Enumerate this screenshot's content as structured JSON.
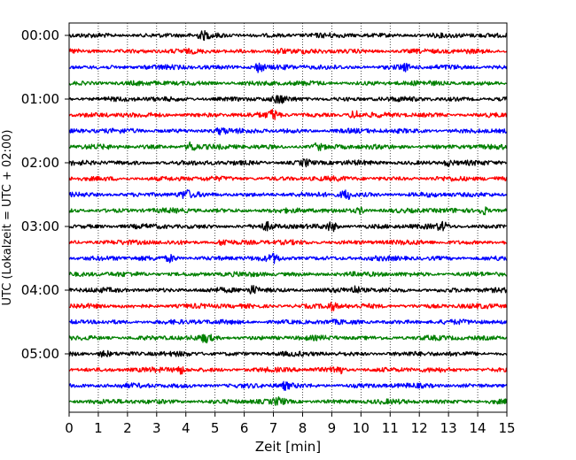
{
  "chart_data": {
    "type": "line",
    "subtype": "helicorder",
    "title": "",
    "xlabel": "Zeit  [min]",
    "ylabel": "UTC (Lokalzeit = UTC + 02:00)",
    "xlim": [
      0,
      15
    ],
    "x_ticks": [
      "0",
      "1",
      "2",
      "3",
      "4",
      "5",
      "6",
      "7",
      "8",
      "9",
      "10",
      "11",
      "12",
      "13",
      "14",
      "15"
    ],
    "x_gridlines": "dotted vertical at each minute",
    "y_tick_labels": [
      "00:00",
      "01:00",
      "02:00",
      "03:00",
      "04:00",
      "05:00"
    ],
    "y_tick_rows": [
      0,
      4,
      8,
      12,
      16,
      20
    ],
    "trace_count": 24,
    "trace_interval_min": 15,
    "color_cycle": [
      "#000000",
      "#ff0000",
      "#0000ff",
      "#008000"
    ],
    "notes": "Seismogram traces; each row is 15 minutes of continuous waveform, amplitudes are noise-like with local bursts.",
    "bursts": [
      {
        "row": 0,
        "x": 4.6,
        "amp": 1.3
      },
      {
        "row": 1,
        "x": 7.2,
        "amp": 1.2
      },
      {
        "row": 2,
        "x": 6.5,
        "amp": 2.2
      },
      {
        "row": 2,
        "x": 11.5,
        "amp": 1.3
      },
      {
        "row": 4,
        "x": 7.2,
        "amp": 1.4
      },
      {
        "row": 5,
        "x": 7.0,
        "amp": 2.0
      },
      {
        "row": 5,
        "x": 9.8,
        "amp": 1.8
      },
      {
        "row": 6,
        "x": 5.2,
        "amp": 1.2
      },
      {
        "row": 7,
        "x": 4.2,
        "amp": 2.2
      },
      {
        "row": 7,
        "x": 8.5,
        "amp": 1.3
      },
      {
        "row": 8,
        "x": 8.1,
        "amp": 1.2
      },
      {
        "row": 8,
        "x": 13.0,
        "amp": 1.2
      },
      {
        "row": 10,
        "x": 9.5,
        "amp": 2.2
      },
      {
        "row": 10,
        "x": 4.0,
        "amp": 1.6
      },
      {
        "row": 11,
        "x": 14.2,
        "amp": 1.8
      },
      {
        "row": 11,
        "x": 10.0,
        "amp": 1.3
      },
      {
        "row": 12,
        "x": 9.0,
        "amp": 2.0
      },
      {
        "row": 12,
        "x": 12.8,
        "amp": 1.6
      },
      {
        "row": 12,
        "x": 6.8,
        "amp": 1.3
      },
      {
        "row": 13,
        "x": 5.3,
        "amp": 1.3
      },
      {
        "row": 14,
        "x": 7.0,
        "amp": 1.5
      },
      {
        "row": 14,
        "x": 3.5,
        "amp": 1.5
      },
      {
        "row": 16,
        "x": 6.3,
        "amp": 1.8
      },
      {
        "row": 16,
        "x": 9.8,
        "amp": 1.4
      },
      {
        "row": 17,
        "x": 9.0,
        "amp": 1.6
      },
      {
        "row": 19,
        "x": 4.7,
        "amp": 1.5
      },
      {
        "row": 20,
        "x": 1.2,
        "amp": 1.5
      },
      {
        "row": 21,
        "x": 3.8,
        "amp": 1.7
      },
      {
        "row": 21,
        "x": 9.2,
        "amp": 2.2
      },
      {
        "row": 22,
        "x": 7.4,
        "amp": 1.3
      },
      {
        "row": 23,
        "x": 7.2,
        "amp": 1.3
      }
    ]
  }
}
